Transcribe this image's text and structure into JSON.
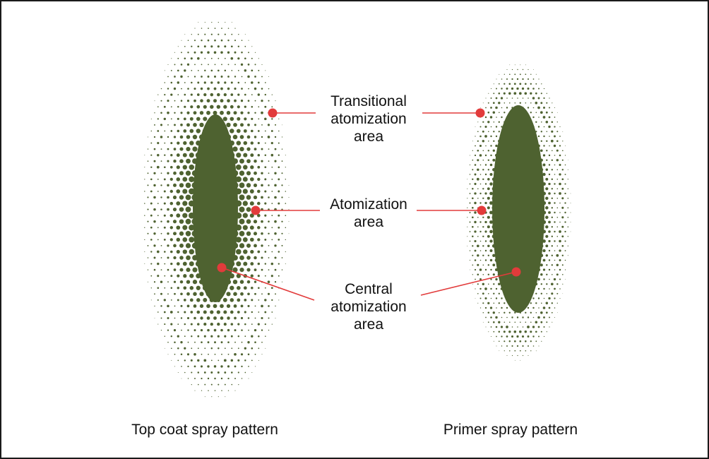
{
  "colors": {
    "spray": "#4e6230",
    "callout": "#e23b3b",
    "text": "#111111",
    "background": "#ffffff"
  },
  "labels": {
    "transitional": [
      "Transitional",
      "atomization",
      "area"
    ],
    "atomization": [
      "Atomization",
      "area"
    ],
    "central": [
      "Central",
      "atomization",
      "area"
    ]
  },
  "captions": {
    "top_coat": "Top coat spray pattern",
    "primer": "Primer spray pattern"
  }
}
